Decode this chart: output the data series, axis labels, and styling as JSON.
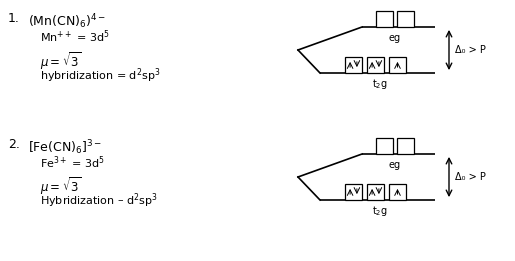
{
  "background_color": "#ffffff",
  "section1": {
    "label": "1.",
    "complex": "(Mn(CN)$_6)^{4-}$",
    "line1": "Mn$^{++}$ = 3d$^5$",
    "line2": "$\\mu = \\sqrt{3}$",
    "line3": "hybridization = d$^2$sp$^3$"
  },
  "section2": {
    "label": "2.",
    "complex": "[Fe(CN)$_6]^{3-}$",
    "line1": "Fe$^{3+}$ = 3d$^5$",
    "line2": "$\\mu = \\sqrt{3}$",
    "line3": "Hybridization – d$^2$sp$^3$"
  },
  "delta_label": "Δ₀ > P",
  "eg_label": "eg",
  "t2g_label": "t$_2$g",
  "text_color": "#000000",
  "box_color": "#000000"
}
